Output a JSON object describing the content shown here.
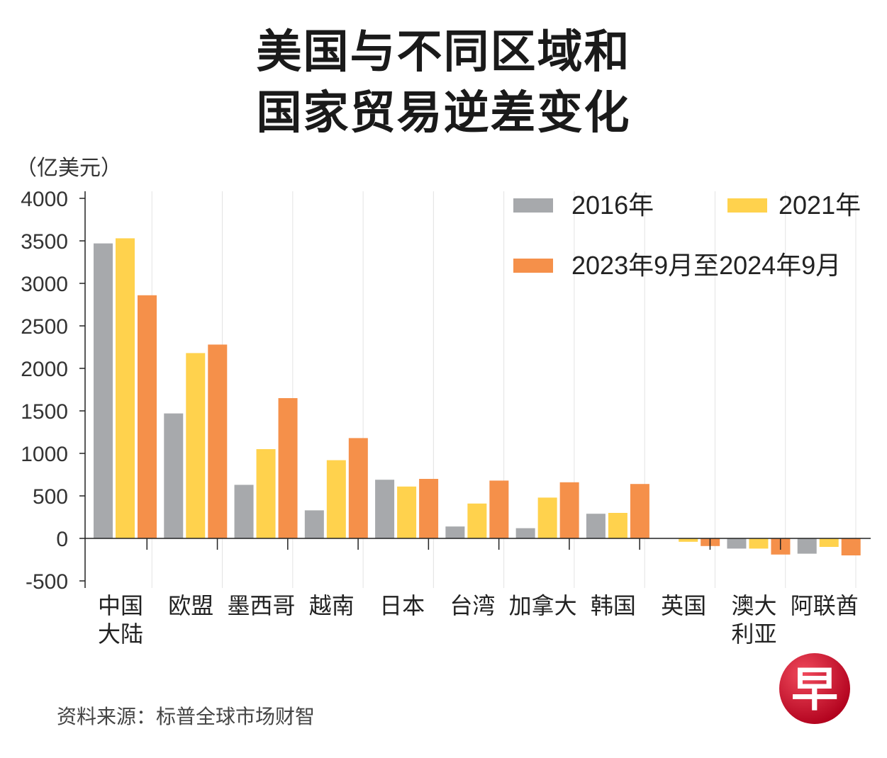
{
  "chart_data": {
    "type": "bar",
    "title": [
      "美国与不同区域和",
      "国家贸易逆差变化"
    ],
    "ylabel": "（亿美元）",
    "ylim": [
      -500,
      4000
    ],
    "yticks": [
      4000,
      3500,
      3000,
      2500,
      2000,
      1500,
      1000,
      500,
      0,
      -500
    ],
    "grid": true,
    "legend_position": "top-right",
    "categories": [
      [
        "中国",
        "大陆"
      ],
      [
        "欧盟"
      ],
      [
        "墨西哥"
      ],
      [
        "越南"
      ],
      [
        "日本"
      ],
      [
        "台湾"
      ],
      [
        "加拿大"
      ],
      [
        "韩国"
      ],
      [
        "英国"
      ],
      [
        "澳大",
        "利亚"
      ],
      [
        "阿联酋"
      ]
    ],
    "series": [
      {
        "name": "2016年",
        "color": "#a7a9ac",
        "values": [
          3470,
          1470,
          630,
          330,
          690,
          140,
          120,
          290,
          0,
          -120,
          -180
        ]
      },
      {
        "name": "2021年",
        "color": "#ffd24d",
        "values": [
          3530,
          2180,
          1050,
          920,
          610,
          410,
          480,
          300,
          -40,
          -120,
          -100
        ]
      },
      {
        "name": "2023年9月至2024年9月",
        "color": "#f5904a",
        "values": [
          2860,
          2280,
          1650,
          1180,
          700,
          680,
          660,
          640,
          -90,
          -190,
          -200
        ]
      }
    ]
  },
  "source": "资料来源：标普全球市场财智",
  "logo": {
    "glyph": "早",
    "color": "#d0142c"
  }
}
